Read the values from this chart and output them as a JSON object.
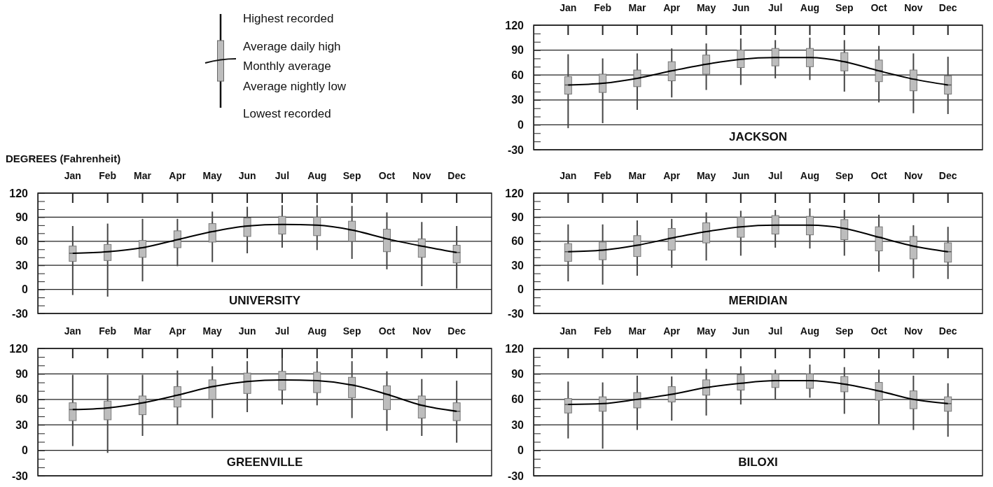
{
  "chart_data": [
    {
      "type": "other",
      "annotations": [
        "Highest recorded",
        "Average daily high",
        "Monthly average",
        "Average nightly low",
        "Lowest recorded"
      ]
    },
    {
      "type": "box",
      "title": "JACKSON",
      "categories": [
        "Jan",
        "Feb",
        "Mar",
        "Apr",
        "May",
        "Jun",
        "Jul",
        "Aug",
        "Sep",
        "Oct",
        "Nov",
        "Dec"
      ],
      "ylim": [
        -30,
        120
      ],
      "yticks": [
        -30,
        {
          "value": -20,
          "label": null
        },
        {
          "value": -10,
          "label": null
        },
        0,
        {
          "value": 10,
          "label": null
        },
        {
          "value": 20,
          "label": null
        },
        30,
        {
          "value": 40,
          "label": null
        },
        {
          "value": 50,
          "label": null
        },
        60,
        {
          "value": 70,
          "label": null
        },
        {
          "value": 80,
          "label": null
        },
        90,
        {
          "value": 100,
          "label": null
        },
        {
          "value": 110,
          "label": null
        },
        120
      ],
      "grid": "y",
      "series": [
        {
          "type": "box",
          "color": "#bdbdbd",
          "boxes": [
            {
              "low": -4,
              "q1": 37,
              "median": 48,
              "q3": 58,
              "high": 85
            },
            {
              "low": 2,
              "q1": 39,
              "median": 50,
              "q3": 61,
              "high": 80
            },
            {
              "low": 18,
              "q1": 46,
              "median": 56,
              "q3": 66,
              "high": 86
            },
            {
              "low": 33,
              "q1": 53,
              "median": 65,
              "q3": 76,
              "high": 92
            },
            {
              "low": 42,
              "q1": 61,
              "median": 73,
              "q3": 84,
              "high": 98
            },
            {
              "low": 48,
              "q1": 69,
              "median": 79,
              "q3": 90,
              "high": 104
            },
            {
              "low": 56,
              "q1": 71,
              "median": 81,
              "q3": 92,
              "high": 102
            },
            {
              "low": 54,
              "q1": 70,
              "median": 81,
              "q3": 92,
              "high": 105
            },
            {
              "low": 40,
              "q1": 65,
              "median": 76,
              "q3": 87,
              "high": 102
            },
            {
              "low": 27,
              "q1": 52,
              "median": 65,
              "q3": 78,
              "high": 95
            },
            {
              "low": 14,
              "q1": 41,
              "median": 55,
              "q3": 66,
              "high": 86
            },
            {
              "low": 13,
              "q1": 37,
              "median": 48,
              "q3": 59,
              "high": 82
            }
          ]
        },
        {
          "type": "line",
          "color": "#000000",
          "values": [
            48,
            50,
            56,
            65,
            73,
            79,
            81,
            81,
            76,
            65,
            55,
            48
          ]
        }
      ]
    },
    {
      "type": "box",
      "title": "UNIVERSITY",
      "ylabel": "DEGREES (Fahrenheit)",
      "categories": [
        "Jan",
        "Feb",
        "Mar",
        "Apr",
        "May",
        "Jun",
        "Jul",
        "Aug",
        "Sep",
        "Oct",
        "Nov",
        "Dec"
      ],
      "ylim": [
        -30,
        120
      ],
      "yticks": [
        -30,
        {
          "value": -20,
          "label": null
        },
        {
          "value": -10,
          "label": null
        },
        0,
        {
          "value": 10,
          "label": null
        },
        {
          "value": 20,
          "label": null
        },
        30,
        {
          "value": 40,
          "label": null
        },
        {
          "value": 50,
          "label": null
        },
        60,
        {
          "value": 70,
          "label": null
        },
        {
          "value": 80,
          "label": null
        },
        90,
        {
          "value": 100,
          "label": null
        },
        {
          "value": 110,
          "label": null
        },
        120
      ],
      "grid": "y",
      "series": [
        {
          "type": "box",
          "color": "#bdbdbd",
          "boxes": [
            {
              "low": -7,
              "q1": 35,
              "median": 45,
              "q3": 54,
              "high": 79
            },
            {
              "low": -9,
              "q1": 36,
              "median": 47,
              "q3": 56,
              "high": 82
            },
            {
              "low": 10,
              "q1": 40,
              "median": 52,
              "q3": 61,
              "high": 88
            },
            {
              "low": 29,
              "q1": 52,
              "median": 62,
              "q3": 73,
              "high": 88
            },
            {
              "low": 34,
              "q1": 59,
              "median": 72,
              "q3": 82,
              "high": 97
            },
            {
              "low": 45,
              "q1": 66,
              "median": 79,
              "q3": 89,
              "high": 103
            },
            {
              "low": 52,
              "q1": 69,
              "median": 81,
              "q3": 91,
              "high": 105
            },
            {
              "low": 49,
              "q1": 67,
              "median": 80,
              "q3": 90,
              "high": 105
            },
            {
              "low": 38,
              "q1": 60,
              "median": 74,
              "q3": 85,
              "high": 104
            },
            {
              "low": 25,
              "q1": 47,
              "median": 63,
              "q3": 75,
              "high": 96
            },
            {
              "low": 4,
              "q1": 40,
              "median": 54,
              "q3": 63,
              "high": 84
            },
            {
              "low": 1,
              "q1": 33,
              "median": 46,
              "q3": 55,
              "high": 79
            }
          ]
        },
        {
          "type": "line",
          "color": "#000000",
          "values": [
            45,
            47,
            52,
            62,
            72,
            79,
            81,
            80,
            74,
            63,
            54,
            46
          ]
        }
      ]
    },
    {
      "type": "box",
      "title": "MERIDIAN",
      "categories": [
        "Jan",
        "Feb",
        "Mar",
        "Apr",
        "May",
        "Jun",
        "Jul",
        "Aug",
        "Sep",
        "Oct",
        "Nov",
        "Dec"
      ],
      "ylim": [
        -30,
        120
      ],
      "yticks": [
        -30,
        {
          "value": -20,
          "label": null
        },
        {
          "value": -10,
          "label": null
        },
        0,
        {
          "value": 10,
          "label": null
        },
        {
          "value": 20,
          "label": null
        },
        30,
        {
          "value": 40,
          "label": null
        },
        {
          "value": 50,
          "label": null
        },
        60,
        {
          "value": 70,
          "label": null
        },
        {
          "value": 80,
          "label": null
        },
        90,
        {
          "value": 100,
          "label": null
        },
        {
          "value": 110,
          "label": null
        },
        120
      ],
      "grid": "y",
      "series": [
        {
          "type": "box",
          "color": "#bdbdbd",
          "boxes": [
            {
              "low": 10,
              "q1": 35,
              "median": 47,
              "q3": 57,
              "high": 81
            },
            {
              "low": 6,
              "q1": 37,
              "median": 49,
              "q3": 59,
              "high": 81
            },
            {
              "low": 17,
              "q1": 41,
              "median": 55,
              "q3": 67,
              "high": 86
            },
            {
              "low": 27,
              "q1": 49,
              "median": 64,
              "q3": 76,
              "high": 88
            },
            {
              "low": 36,
              "q1": 58,
              "median": 72,
              "q3": 83,
              "high": 96
            },
            {
              "low": 42,
              "q1": 65,
              "median": 78,
              "q3": 90,
              "high": 98
            },
            {
              "low": 52,
              "q1": 69,
              "median": 80,
              "q3": 92,
              "high": 99
            },
            {
              "low": 51,
              "q1": 68,
              "median": 80,
              "q3": 91,
              "high": 101
            },
            {
              "low": 42,
              "q1": 62,
              "median": 76,
              "q3": 87,
              "high": 99
            },
            {
              "low": 22,
              "q1": 48,
              "median": 65,
              "q3": 78,
              "high": 93
            },
            {
              "low": 14,
              "q1": 38,
              "median": 54,
              "q3": 66,
              "high": 80
            },
            {
              "low": 13,
              "q1": 34,
              "median": 47,
              "q3": 58,
              "high": 78
            }
          ]
        },
        {
          "type": "line",
          "color": "#000000",
          "values": [
            47,
            49,
            55,
            64,
            72,
            78,
            80,
            80,
            76,
            65,
            54,
            47
          ]
        }
      ]
    },
    {
      "type": "box",
      "title": "GREENVILLE",
      "categories": [
        "Jan",
        "Feb",
        "Mar",
        "Apr",
        "May",
        "Jun",
        "Jul",
        "Aug",
        "Sep",
        "Oct",
        "Nov",
        "Dec"
      ],
      "ylim": [
        -30,
        120
      ],
      "yticks": [
        -30,
        {
          "value": -20,
          "label": null
        },
        {
          "value": -10,
          "label": null
        },
        0,
        {
          "value": 10,
          "label": null
        },
        {
          "value": 20,
          "label": null
        },
        30,
        {
          "value": 40,
          "label": null
        },
        {
          "value": 50,
          "label": null
        },
        60,
        {
          "value": 70,
          "label": null
        },
        {
          "value": 80,
          "label": null
        },
        90,
        {
          "value": 100,
          "label": null
        },
        {
          "value": 110,
          "label": null
        },
        120
      ],
      "grid": "y",
      "series": [
        {
          "type": "box",
          "color": "#bdbdbd",
          "boxes": [
            {
              "low": 5,
              "q1": 35,
              "median": 48,
              "q3": 56,
              "high": 89
            },
            {
              "low": -3,
              "q1": 36,
              "median": 50,
              "q3": 58,
              "high": 89
            },
            {
              "low": 17,
              "q1": 42,
              "median": 56,
              "q3": 64,
              "high": 89
            },
            {
              "low": 30,
              "q1": 51,
              "median": 65,
              "q3": 75,
              "high": 94
            },
            {
              "low": 38,
              "q1": 60,
              "median": 75,
              "q3": 83,
              "high": 99
            },
            {
              "low": 45,
              "q1": 67,
              "median": 81,
              "q3": 91,
              "high": 105
            },
            {
              "low": 54,
              "q1": 71,
              "median": 83,
              "q3": 93,
              "high": 109
            },
            {
              "low": 53,
              "q1": 68,
              "median": 82,
              "q3": 92,
              "high": 105
            },
            {
              "low": 38,
              "q1": 62,
              "median": 77,
              "q3": 86,
              "high": 105
            },
            {
              "low": 23,
              "q1": 48,
              "median": 66,
              "q3": 76,
              "high": 93
            },
            {
              "low": 17,
              "q1": 38,
              "median": 53,
              "q3": 64,
              "high": 84
            },
            {
              "low": 9,
              "q1": 35,
              "median": 46,
              "q3": 56,
              "high": 82
            }
          ]
        },
        {
          "type": "line",
          "color": "#000000",
          "values": [
            48,
            50,
            56,
            65,
            75,
            81,
            83,
            82,
            77,
            66,
            53,
            46
          ]
        }
      ]
    },
    {
      "type": "box",
      "title": "BILOXI",
      "categories": [
        "Jan",
        "Feb",
        "Mar",
        "Apr",
        "May",
        "Jun",
        "Jul",
        "Aug",
        "Sep",
        "Oct",
        "Nov",
        "Dec"
      ],
      "ylim": [
        -30,
        120
      ],
      "yticks": [
        -30,
        {
          "value": -20,
          "label": null
        },
        {
          "value": -10,
          "label": null
        },
        0,
        {
          "value": 10,
          "label": null
        },
        {
          "value": 20,
          "label": null
        },
        30,
        {
          "value": 40,
          "label": null
        },
        {
          "value": 50,
          "label": null
        },
        60,
        {
          "value": 70,
          "label": null
        },
        {
          "value": 80,
          "label": null
        },
        90,
        {
          "value": 100,
          "label": null
        },
        {
          "value": 110,
          "label": null
        },
        120
      ],
      "grid": "y",
      "series": [
        {
          "type": "box",
          "color": "#bdbdbd",
          "boxes": [
            {
              "low": 14,
              "q1": 44,
              "median": 54,
              "q3": 61,
              "high": 81
            },
            {
              "low": 2,
              "q1": 46,
              "median": 55,
              "q3": 63,
              "high": 80
            },
            {
              "low": 24,
              "q1": 50,
              "median": 60,
              "q3": 68,
              "high": 88
            },
            {
              "low": 35,
              "q1": 57,
              "median": 66,
              "q3": 75,
              "high": 87
            },
            {
              "low": 41,
              "q1": 65,
              "median": 74,
              "q3": 83,
              "high": 96
            },
            {
              "low": 54,
              "q1": 71,
              "median": 79,
              "q3": 89,
              "high": 99
            },
            {
              "low": 60,
              "q1": 74,
              "median": 82,
              "q3": 90,
              "high": 95
            },
            {
              "low": 62,
              "q1": 73,
              "median": 82,
              "q3": 90,
              "high": 101
            },
            {
              "low": 43,
              "q1": 69,
              "median": 78,
              "q3": 87,
              "high": 98
            },
            {
              "low": 31,
              "q1": 59,
              "median": 70,
              "q3": 80,
              "high": 95
            },
            {
              "low": 24,
              "q1": 49,
              "median": 60,
              "q3": 70,
              "high": 88
            },
            {
              "low": 16,
              "q1": 46,
              "median": 55,
              "q3": 63,
              "high": 79
            }
          ]
        },
        {
          "type": "line",
          "color": "#000000",
          "values": [
            54,
            55,
            60,
            66,
            74,
            79,
            82,
            82,
            78,
            70,
            60,
            55
          ]
        }
      ]
    }
  ]
}
